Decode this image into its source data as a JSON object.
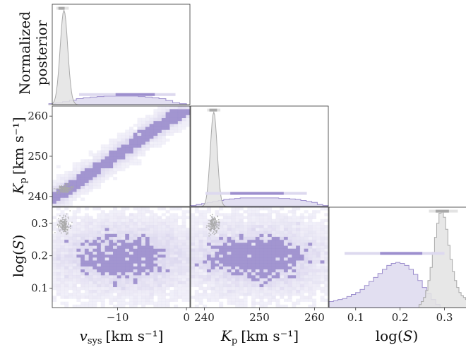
{
  "chart_data": {
    "type": "corner",
    "parameters": [
      {
        "id": "vsys",
        "symbol": "v",
        "subscript": "sys",
        "unit": "[km s⁻¹]",
        "range": [
          -19.5,
          0.5
        ],
        "ticks": [
          -10,
          0
        ],
        "tick_labels": [
          "−10",
          "0"
        ]
      },
      {
        "id": "kp",
        "symbol": "K",
        "subscript": "p",
        "unit": "[km s⁻¹]",
        "range": [
          237.5,
          262.5
        ],
        "ticks": [
          240,
          250,
          260
        ],
        "tick_labels": [
          "240",
          "250",
          "260"
        ]
      },
      {
        "id": "logs",
        "symbol": "log(",
        "symbol_it": "S",
        "symbol_end": ")",
        "range": [
          0.04,
          0.35
        ],
        "ticks": [
          0.1,
          0.2,
          0.3
        ],
        "tick_labels": [
          "0.1",
          "0.2",
          "0.3"
        ]
      }
    ],
    "diagonal_ylabel": [
      "Normalized",
      "posterior"
    ],
    "colors": {
      "broad": "#9d8fce",
      "broad_light": "#ddd9ef",
      "narrow": "#a9a9a9",
      "narrow_light": "#e3e3e3"
    },
    "marginals": {
      "vsys": {
        "broad": {
          "x": [
            -19.5,
            -18.5,
            -17.5,
            -16.5,
            -15.5,
            -14.5,
            -13.5,
            -12.5,
            -11.5,
            -10.5,
            -9.5,
            -8.5,
            -7.5,
            -6.5,
            -5.5,
            -4.5,
            -3.5,
            -2.5,
            -1.5,
            -0.5
          ],
          "h": [
            0.01,
            0.02,
            0.03,
            0.045,
            0.06,
            0.07,
            0.075,
            0.08,
            0.085,
            0.085,
            0.085,
            0.085,
            0.085,
            0.08,
            0.075,
            0.07,
            0.06,
            0.04,
            0.02,
            0.01
          ]
        },
        "narrow": {
          "center": -17.8,
          "sigma": 0.55,
          "peak": 0.94
        },
        "broad_interval": {
          "light": [
            -15.6,
            -1.6
          ],
          "dark": [
            -10.3,
            -4.6
          ],
          "level": 0.1
        },
        "narrow_interval": {
          "light": [
            -18.9,
            -17.1
          ],
          "dark": [
            -18.6,
            -17.7
          ],
          "level": 0.96
        }
      },
      "kp": {
        "broad": {
          "x": [
            238,
            239,
            240,
            241,
            242,
            243,
            244,
            245,
            246,
            247,
            248,
            249,
            250,
            251,
            252,
            253,
            254,
            255,
            256,
            257,
            258,
            259,
            260,
            261,
            262
          ],
          "h": [
            0.01,
            0.02,
            0.03,
            0.04,
            0.05,
            0.06,
            0.07,
            0.075,
            0.08,
            0.085,
            0.085,
            0.085,
            0.085,
            0.085,
            0.085,
            0.085,
            0.08,
            0.08,
            0.075,
            0.07,
            0.06,
            0.05,
            0.04,
            0.02,
            0.01
          ]
        },
        "narrow": {
          "center": 241.7,
          "sigma": 0.62,
          "peak": 0.94
        },
        "broad_interval": {
          "light": [
            240.2,
            258.6
          ],
          "dark": [
            244.7,
            254.4
          ],
          "level": 0.13
        },
        "narrow_interval": {
          "light": [
            240.5,
            242.9
          ],
          "dark": [
            240.9,
            242.3
          ],
          "level": 0.96
        }
      },
      "logs": {
        "broad": {
          "x": [
            0.045,
            0.055,
            0.065,
            0.075,
            0.085,
            0.095,
            0.105,
            0.115,
            0.125,
            0.135,
            0.145,
            0.155,
            0.165,
            0.175,
            0.185,
            0.195,
            0.205,
            0.215,
            0.225,
            0.235,
            0.245,
            0.255,
            0.265,
            0.275,
            0.285
          ],
          "h": [
            0.06,
            0.07,
            0.08,
            0.09,
            0.11,
            0.13,
            0.15,
            0.18,
            0.22,
            0.26,
            0.3,
            0.34,
            0.38,
            0.42,
            0.44,
            0.45,
            0.44,
            0.42,
            0.38,
            0.33,
            0.27,
            0.2,
            0.14,
            0.08,
            0.03
          ]
        },
        "narrow": {
          "x": [
            0.245,
            0.25,
            0.255,
            0.26,
            0.265,
            0.27,
            0.275,
            0.28,
            0.285,
            0.29,
            0.295,
            0.3,
            0.305,
            0.31,
            0.315,
            0.32,
            0.325,
            0.33,
            0.335,
            0.34,
            0.345,
            0.35
          ],
          "h": [
            0.03,
            0.06,
            0.1,
            0.17,
            0.27,
            0.4,
            0.55,
            0.7,
            0.84,
            0.94,
            0.96,
            0.9,
            0.78,
            0.62,
            0.48,
            0.36,
            0.27,
            0.2,
            0.15,
            0.12,
            0.1,
            0.08
          ]
        },
        "broad_interval": {
          "light": [
            0.075,
            0.3
          ],
          "dark": [
            0.155,
            0.25
          ],
          "level": 0.54
        },
        "narrow_interval": {
          "light": [
            0.265,
            0.33
          ],
          "dark": [
            0.28,
            0.31
          ],
          "level": 0.96
        }
      }
    },
    "joint": [
      {
        "pair": [
          "vsys",
          "kp"
        ],
        "broad": {
          "kind": "correlated",
          "slope": 1.18,
          "intercept": 262.2,
          "spread": 1.5
        },
        "narrow": {
          "center": [
            -17.8,
            241.9
          ],
          "spread": [
            0.5,
            0.5
          ]
        }
      },
      {
        "pair": [
          "vsys",
          "logs"
        ],
        "broad": {
          "kind": "blob",
          "center": [
            -9,
            0.195
          ],
          "spread": [
            6.0,
            0.06
          ]
        },
        "narrow": {
          "center": [
            -17.8,
            0.295
          ],
          "spread": [
            0.45,
            0.013
          ]
        }
      },
      {
        "pair": [
          "kp",
          "logs"
        ],
        "broad": {
          "kind": "blob",
          "center": [
            249.5,
            0.195
          ],
          "spread": [
            7.5,
            0.06
          ]
        },
        "narrow": {
          "center": [
            241.7,
            0.295
          ],
          "spread": [
            0.5,
            0.013
          ]
        }
      }
    ]
  }
}
